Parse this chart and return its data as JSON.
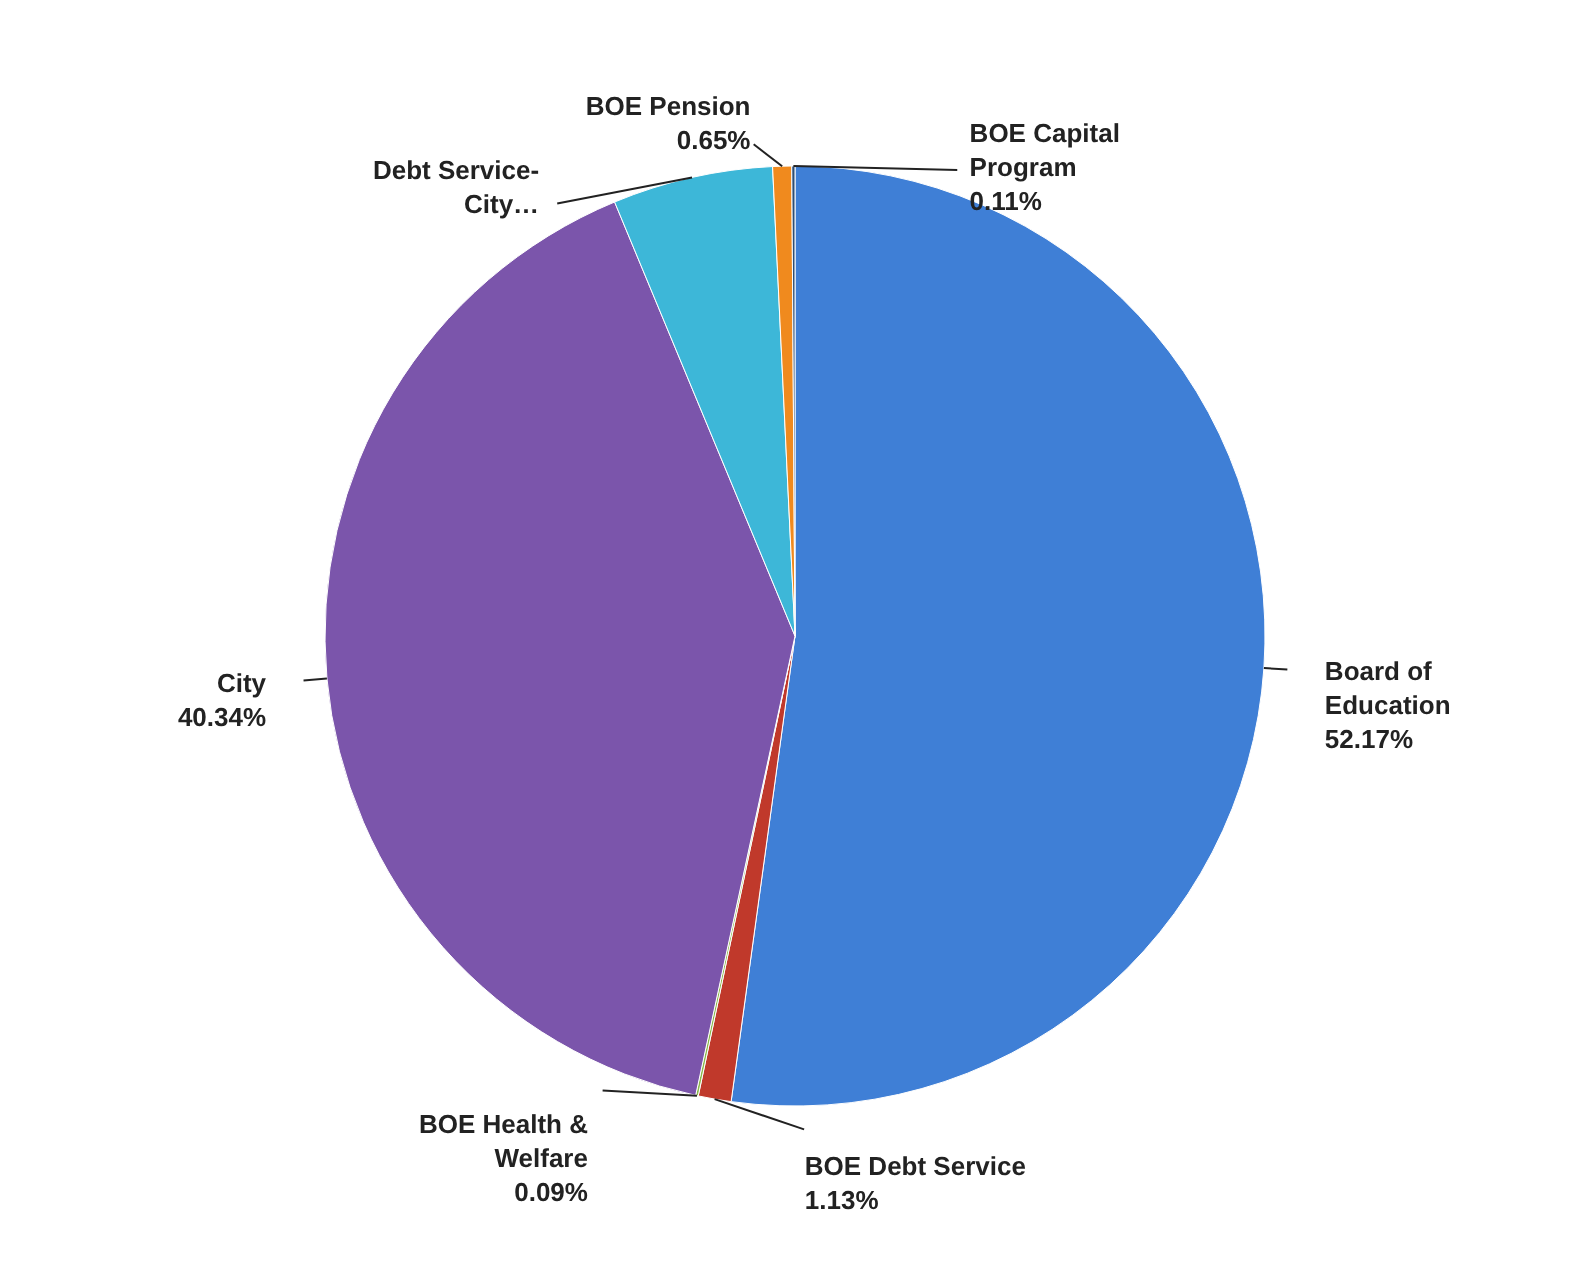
{
  "chart_data": {
    "type": "pie",
    "categories": [
      "Board of Education",
      "BOE Debt Service",
      "BOE Health & Welfare",
      "City",
      "Debt Service-City…",
      "BOE Pension",
      "BOE Capital Program"
    ],
    "values": [
      52.17,
      1.13,
      0.09,
      40.34,
      5.51,
      0.65,
      0.11
    ],
    "value_labels": [
      "52.17%",
      "1.13%",
      "0.09%",
      "40.34%",
      null,
      "0.65%",
      "0.11%"
    ],
    "colors": [
      "#3f7fd6",
      "#c0392b",
      "#8bb84a",
      "#7b55ab",
      "#3db7d8",
      "#f08a1e",
      "#2c4d75"
    ]
  }
}
